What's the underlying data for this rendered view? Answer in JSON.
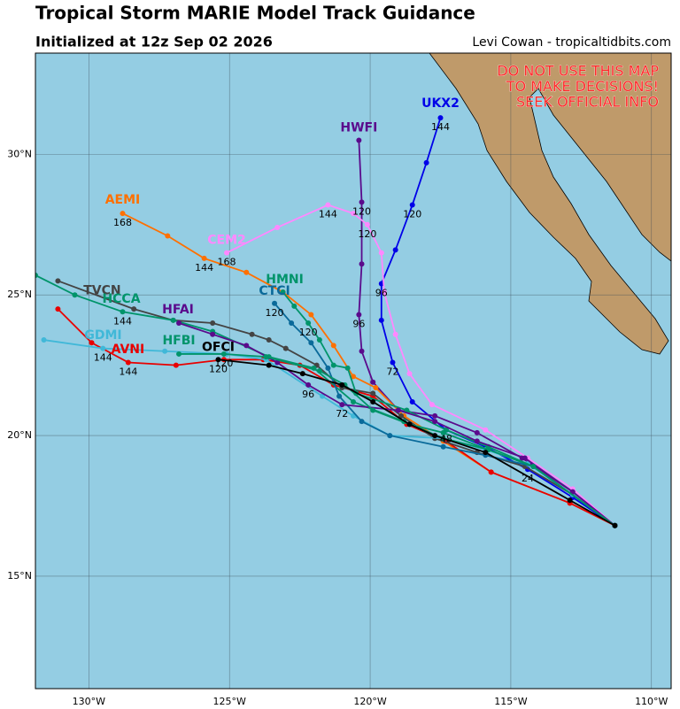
{
  "chart_data": {
    "type": "line",
    "title": "Tropical Storm MARIE Model Track Guidance",
    "subtitle": "Initialized at 12z Sep 02 2026",
    "credit": "Levi Cowan - tropicaltidbits.com",
    "warning": [
      "DO NOT USE THIS MAP",
      "TO MAKE DECISIONS!",
      "SEEK OFFICIAL INFO"
    ],
    "xlim": [
      -131.9,
      -109.3
    ],
    "ylim": [
      11.0,
      33.6
    ],
    "xticks": [
      {
        "value": -130,
        "label": "130°W"
      },
      {
        "value": -125,
        "label": "125°W"
      },
      {
        "value": -120,
        "label": "120°W"
      },
      {
        "value": -115,
        "label": "115°W"
      },
      {
        "value": -110,
        "label": "110°W"
      }
    ],
    "yticks": [
      {
        "value": 15,
        "label": "15°N"
      },
      {
        "value": 20,
        "label": "20°N"
      },
      {
        "value": 25,
        "label": "25°N"
      },
      {
        "value": 30,
        "label": "30°N"
      }
    ],
    "grid": true,
    "series": [
      {
        "name": "UKX2",
        "color": "#0000e8",
        "x": [
          -111.3,
          -112.8,
          -114.4,
          -115.9,
          -117.3,
          -118.5,
          -119.2,
          -119.6,
          -119.6,
          -119.1,
          -118.5,
          -118.0,
          -117.5
        ],
        "values": [
          16.8,
          17.8,
          18.8,
          19.6,
          20.2,
          21.2,
          22.6,
          24.1,
          25.4,
          26.6,
          28.2,
          29.7,
          31.3
        ],
        "hours": [
          null,
          null,
          24,
          null,
          48,
          null,
          72,
          null,
          96,
          null,
          120,
          null,
          144
        ]
      },
      {
        "name": "HWFI",
        "color": "#5a0a8c",
        "x": [
          -111.3,
          -112.8,
          -114.6,
          -116.2,
          -117.7,
          -119.0,
          -119.9,
          -120.3,
          -120.4,
          -120.3,
          -120.3,
          -120.4
        ],
        "values": [
          16.8,
          18.0,
          19.2,
          20.1,
          20.7,
          20.9,
          21.9,
          23.0,
          24.3,
          26.1,
          28.3,
          30.5
        ],
        "hours": [
          null,
          null,
          null,
          null,
          null,
          null,
          null,
          null,
          96,
          null,
          120,
          null
        ]
      },
      {
        "name": "CEM2",
        "color": "#ff88ff",
        "x": [
          -111.3,
          -112.8,
          -114.4,
          -115.9,
          -117.8,
          -118.6,
          -119.1,
          -119.5,
          -119.6,
          -120.1,
          -120.6,
          -121.5,
          -123.3,
          -125.1
        ],
        "values": [
          16.8,
          18.1,
          19.2,
          20.2,
          21.1,
          22.2,
          23.6,
          25.1,
          26.5,
          27.5,
          27.9,
          28.2,
          27.4,
          26.5
        ],
        "hours": [
          null,
          null,
          null,
          null,
          null,
          null,
          null,
          null,
          null,
          120,
          null,
          144,
          null,
          168
        ]
      },
      {
        "name": "AEMI",
        "color": "#ff7000",
        "x": [
          -111.3,
          -112.9,
          -115.7,
          -117.4,
          -118.8,
          -119.8,
          -120.6,
          -121.3,
          -122.1,
          -123.1,
          -124.4,
          -125.9,
          -127.2,
          -128.8
        ],
        "values": [
          16.8,
          17.6,
          18.7,
          19.8,
          20.7,
          21.7,
          22.1,
          23.2,
          24.3,
          25.1,
          25.8,
          26.3,
          27.1,
          27.9
        ],
        "hours": [
          null,
          null,
          null,
          null,
          null,
          null,
          null,
          null,
          null,
          null,
          null,
          144,
          null,
          168
        ]
      },
      {
        "name": "AVNI",
        "color": "#e80000",
        "x": [
          -111.3,
          -112.9,
          -115.7,
          -117.3,
          -118.7,
          -119.9,
          -121.3,
          -122.5,
          -123.8,
          -125.2,
          -126.9,
          -128.6,
          -129.9,
          -131.1
        ],
        "values": [
          16.8,
          17.6,
          18.7,
          19.8,
          20.4,
          21.4,
          21.8,
          22.5,
          22.7,
          22.7,
          22.5,
          22.6,
          23.3,
          24.5
        ],
        "hours": [
          null,
          null,
          null,
          null,
          null,
          null,
          null,
          null,
          null,
          null,
          null,
          144,
          null,
          null
        ]
      },
      {
        "name": "TVCN",
        "color": "#444444",
        "x": [
          -111.3,
          -112.8,
          -114.5,
          -116.2,
          -117.7,
          -118.9,
          -119.9,
          -121.0,
          -121.9,
          -123.0,
          -123.6,
          -124.2,
          -125.6,
          -127.0,
          -128.4,
          -131.1
        ],
        "values": [
          16.8,
          17.9,
          18.9,
          19.4,
          19.9,
          20.7,
          21.5,
          21.7,
          22.5,
          23.1,
          23.4,
          23.6,
          24.0,
          24.1,
          24.5,
          25.5
        ]
      },
      {
        "name": "GDMI",
        "color": "#40b8d8",
        "x": [
          -111.3,
          -112.8,
          -114.4,
          -115.9,
          -117.4,
          -119.3,
          -120.6,
          -121.7,
          -123.7,
          -125.1,
          -127.3,
          -129.5,
          -131.6
        ],
        "values": [
          16.8,
          17.9,
          19.0,
          19.5,
          19.9,
          20.0,
          20.7,
          21.4,
          22.7,
          22.9,
          23.0,
          23.1,
          23.4
        ],
        "hours": [
          null,
          null,
          null,
          null,
          null,
          null,
          null,
          null,
          null,
          null,
          null,
          144,
          null
        ]
      },
      {
        "name": "HMNI",
        "color": "#00946a",
        "x": [
          -111.3,
          -114.2,
          -115.8,
          -117.3,
          -118.7,
          -120.5,
          -120.8,
          -121.3,
          -121.8,
          -122.2,
          -122.7,
          -123.1
        ],
        "values": [
          16.8,
          18.9,
          19.6,
          20.2,
          20.9,
          21.5,
          22.4,
          22.5,
          23.4,
          24.0,
          24.6,
          25.1
        ],
        "hours": [
          null,
          null,
          null,
          null,
          null,
          null,
          null,
          null,
          null,
          120,
          null,
          null
        ]
      },
      {
        "name": "HCCA",
        "color": "#00946a",
        "x": [
          -111.3,
          -114.2,
          -115.8,
          -117.4,
          -118.8,
          -120.6,
          -122.0,
          -123.6,
          -125.6,
          -127.0,
          -128.8,
          -130.5,
          -131.9
        ],
        "values": [
          16.8,
          18.9,
          19.5,
          19.9,
          20.5,
          21.2,
          22.4,
          22.8,
          23.7,
          24.1,
          24.4,
          25.0,
          25.7
        ],
        "hours": [
          null,
          null,
          null,
          null,
          null,
          null,
          null,
          null,
          null,
          null,
          144,
          null,
          null
        ]
      },
      {
        "name": "CTCI",
        "color": "#0a6a9a",
        "x": [
          -111.3,
          -114.2,
          -115.9,
          -117.4,
          -119.3,
          -120.3,
          -121.1,
          -121.5,
          -122.1,
          -122.8,
          -123.4
        ],
        "values": [
          16.8,
          18.9,
          19.3,
          19.6,
          20.0,
          20.5,
          21.4,
          22.4,
          23.3,
          24.0,
          24.7
        ],
        "hours": [
          null,
          null,
          null,
          null,
          null,
          null,
          null,
          null,
          null,
          null,
          120
        ]
      },
      {
        "name": "HFAI",
        "color": "#5a0a8c",
        "x": [
          -111.3,
          -112.8,
          -114.5,
          -116.2,
          -117.7,
          -119.0,
          -121.0,
          -122.2,
          -123.3,
          -124.4,
          -125.6,
          -126.8
        ],
        "values": [
          16.8,
          18.0,
          19.2,
          19.8,
          20.5,
          20.9,
          21.1,
          21.8,
          22.6,
          23.2,
          23.6,
          24.0
        ],
        "hours": [
          null,
          null,
          null,
          null,
          null,
          null,
          72,
          96,
          null,
          null,
          null,
          null
        ]
      },
      {
        "name": "HFBI",
        "color": "#00946a",
        "x": [
          -111.3,
          -114.2,
          -115.8,
          -117.4,
          -118.6,
          -119.9,
          -120.9,
          -121.8,
          -123.7,
          -125.2,
          -126.8
        ],
        "values": [
          16.8,
          18.9,
          19.5,
          20.1,
          20.4,
          20.9,
          21.8,
          22.3,
          22.8,
          22.9,
          22.9
        ],
        "hours": [
          null,
          null,
          null,
          null,
          null,
          null,
          null,
          null,
          null,
          120,
          null
        ]
      },
      {
        "name": "OFCI",
        "color": "#000000",
        "x": [
          -111.3,
          -112.9,
          -115.9,
          -117.7,
          -118.6,
          -119.9,
          -121.0,
          -122.4,
          -123.6,
          -125.4
        ],
        "values": [
          16.8,
          17.7,
          19.4,
          20.0,
          20.4,
          21.2,
          21.8,
          22.2,
          22.5,
          22.7
        ],
        "hours": [
          null,
          null,
          null,
          null,
          null,
          null,
          null,
          null,
          null,
          120
        ]
      }
    ]
  }
}
